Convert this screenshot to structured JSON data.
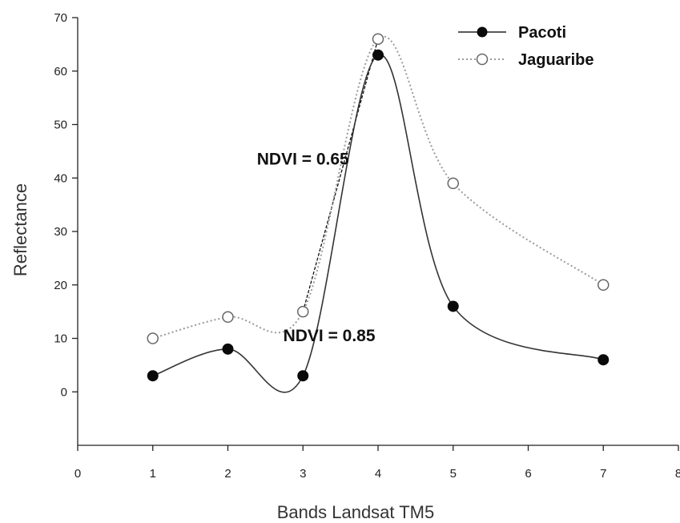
{
  "chart_data": {
    "type": "line",
    "xlabel": "Bands Landsat TM5",
    "ylabel": "Reflectance",
    "xlim": [
      0,
      8
    ],
    "ylim": [
      -10,
      70
    ],
    "x_ticks": [
      0,
      1,
      2,
      3,
      4,
      5,
      6,
      7,
      8
    ],
    "y_ticks": [
      0,
      10,
      20,
      30,
      40,
      50,
      60,
      70
    ],
    "grid": false,
    "legend_position": "top-right",
    "series": [
      {
        "name": "Pacoti",
        "x": [
          1,
          2,
          3,
          4,
          5,
          7
        ],
        "values": [
          3,
          8,
          3,
          63,
          16,
          6
        ],
        "line_style": "solid",
        "marker": "filled-circle",
        "color": "#222222"
      },
      {
        "name": "Jaguaribe",
        "x": [
          1,
          2,
          3,
          4,
          5,
          7
        ],
        "values": [
          10,
          14,
          15,
          66,
          39,
          20
        ],
        "line_style": "dotted",
        "marker": "open-circle",
        "color": "#999999"
      }
    ],
    "annotations": [
      {
        "text": "NDVI = 0.65",
        "anchor_x": 3,
        "anchor_y": 42.5,
        "connector": {
          "from": [
            3,
            15
          ],
          "to": [
            4,
            66
          ],
          "style": "dashed"
        }
      },
      {
        "text": "NDVI = 0.85",
        "anchor_x": 3.35,
        "anchor_y": 9.5
      }
    ]
  }
}
